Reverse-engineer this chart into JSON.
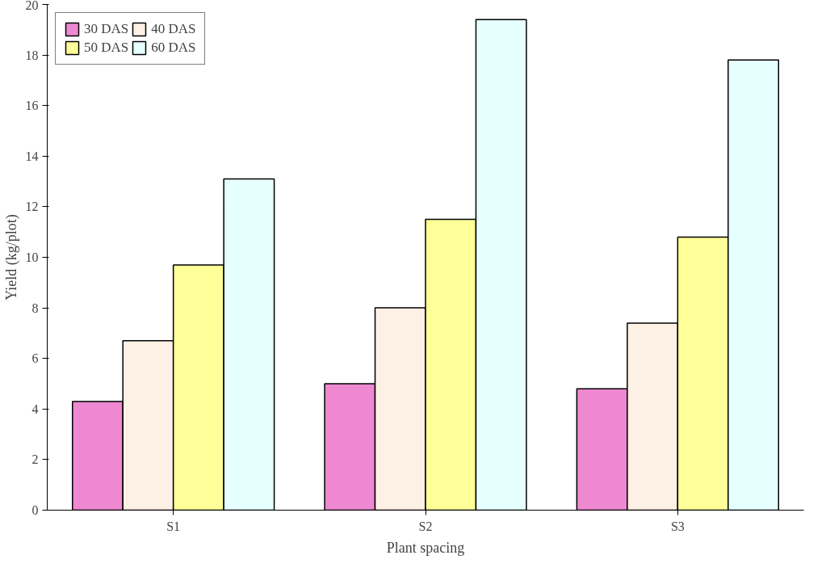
{
  "chart_data": {
    "type": "bar",
    "xlabel": "Plant spacing",
    "ylabel": "Yield (kg/plot)",
    "categories": [
      "S1",
      "S2",
      "S3"
    ],
    "series": [
      {
        "name": "30 DAS",
        "color": "#ee88d0",
        "values": [
          4.3,
          5.0,
          4.8
        ]
      },
      {
        "name": "40 DAS",
        "color": "#fdf0e4",
        "values": [
          6.7,
          8.0,
          7.4
        ]
      },
      {
        "name": "50 DAS",
        "color": "#ffff99",
        "values": [
          9.7,
          11.5,
          10.8
        ]
      },
      {
        "name": "60 DAS",
        "color": "#e6ffff",
        "values": [
          13.1,
          19.4,
          17.8
        ]
      }
    ],
    "ylim": [
      0,
      20
    ],
    "yticks": [
      0,
      2,
      4,
      6,
      8,
      10,
      12,
      14,
      16,
      18,
      20
    ],
    "grid": false,
    "legend": "top left"
  }
}
